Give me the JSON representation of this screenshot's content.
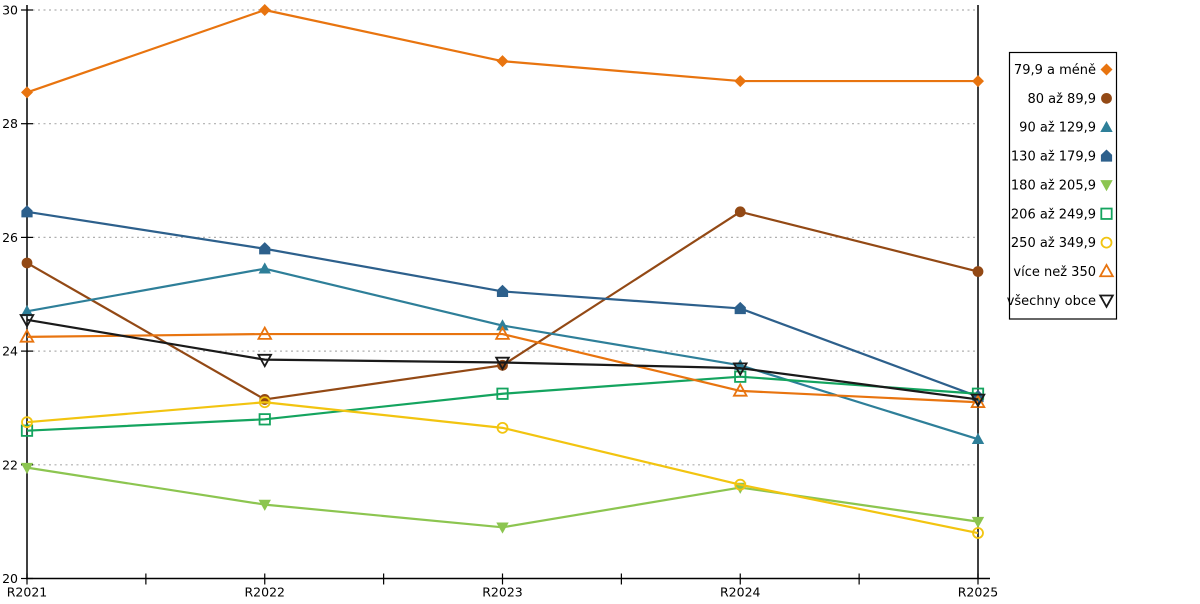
{
  "chart_data": {
    "type": "line",
    "title": "",
    "xlabel": "",
    "ylabel": "",
    "categories": [
      "R2021",
      "R2022",
      "R2023",
      "R2024",
      "R2025"
    ],
    "ylim": [
      20,
      30
    ],
    "yticks": [
      20,
      22,
      24,
      26,
      28,
      30
    ],
    "ytick_labels": [
      "20",
      "22",
      "24",
      "26",
      "28",
      "30"
    ],
    "grid": "horizontal-dashed",
    "grid_color": "#AFAFAF",
    "axis_color": "#000000",
    "legend_position": "right",
    "legend_border_color": "#000000",
    "legend_background": "#FFFFFF",
    "series": [
      {
        "name": "79,9 a méně",
        "color": "#E8740F",
        "marker": "diamond-filled",
        "values": [
          28.55,
          30.0,
          29.1,
          28.75,
          28.75
        ]
      },
      {
        "name": "80 až 89,9",
        "color": "#934915",
        "marker": "circle-filled",
        "values": [
          25.55,
          23.15,
          23.75,
          26.45,
          25.4
        ]
      },
      {
        "name": "90 až 129,9",
        "color": "#2E7F99",
        "marker": "triangle-up-filled",
        "values": [
          24.7,
          25.45,
          24.45,
          23.75,
          22.45
        ]
      },
      {
        "name": "130 až 179,9",
        "color": "#2D608C",
        "marker": "pentagon-filled",
        "values": [
          26.45,
          25.8,
          25.05,
          24.75,
          23.2
        ]
      },
      {
        "name": "180 až 205,9",
        "color": "#8CC550",
        "marker": "triangle-down-filled",
        "values": [
          21.95,
          21.3,
          20.9,
          21.6,
          21.0
        ]
      },
      {
        "name": "206 až 249,9",
        "color": "#14A45F",
        "marker": "square-open",
        "values": [
          22.6,
          22.8,
          23.25,
          23.55,
          23.25
        ]
      },
      {
        "name": "250 až 349,9",
        "color": "#F2C410",
        "marker": "circle-open",
        "values": [
          22.75,
          23.1,
          22.65,
          21.65,
          20.8
        ]
      },
      {
        "name": "více než 350",
        "color": "#E8740F",
        "marker": "triangle-up-open",
        "values": [
          24.25,
          24.3,
          24.3,
          23.3,
          23.1
        ]
      },
      {
        "name": "všechny obce",
        "color": "#1A1A1A",
        "marker": "triangle-down-open",
        "values": [
          24.55,
          23.85,
          23.8,
          23.7,
          23.15
        ]
      }
    ]
  }
}
